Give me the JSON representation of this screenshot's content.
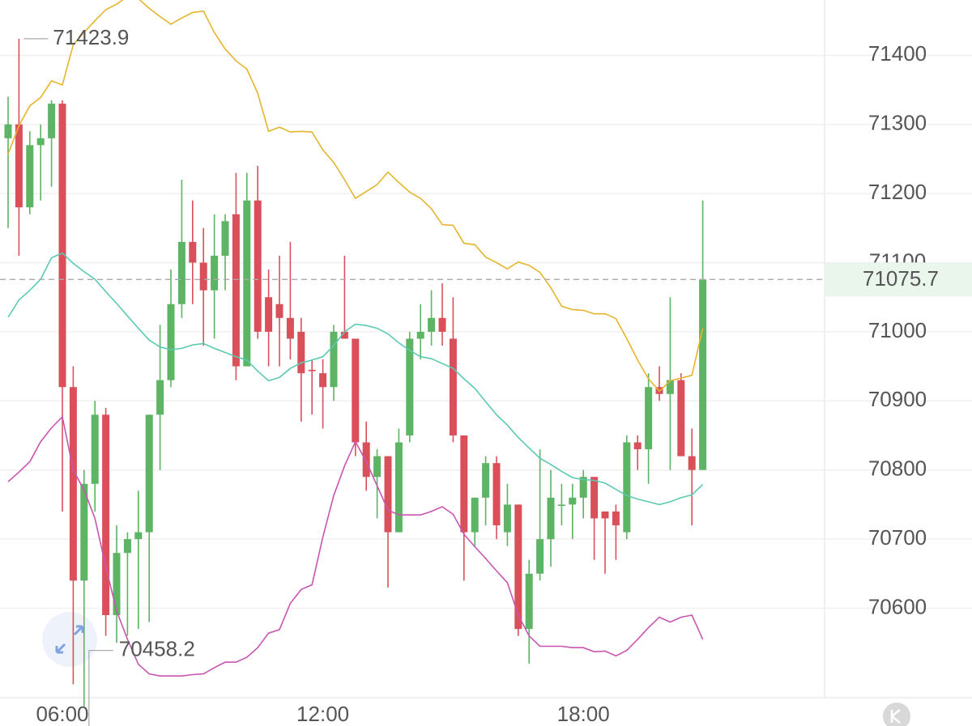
{
  "chart_data": {
    "type": "candlestick",
    "categories": [
      null,
      null,
      null,
      null,
      null,
      "06:00",
      null,
      null,
      null,
      null,
      null,
      null,
      null,
      null,
      null,
      null,
      null,
      null,
      null,
      null,
      null,
      null,
      null,
      null,
      null,
      null,
      null,
      null,
      null,
      "12:00",
      null,
      null,
      null,
      null,
      null,
      null,
      null,
      null,
      null,
      null,
      null,
      null,
      null,
      null,
      null,
      null,
      null,
      null,
      null,
      null,
      null,
      null,
      null,
      "18:00",
      null,
      null,
      null,
      null,
      null,
      null,
      null,
      null,
      null,
      null,
      null
    ],
    "open": [
      71280,
      71300,
      71180,
      71270,
      71280,
      71330,
      70920,
      70640,
      70780,
      70880,
      70590,
      70680,
      70700,
      70710,
      70880,
      70930,
      71040,
      71130,
      71100,
      71060,
      71110,
      71170,
      70950,
      71190,
      71050,
      71040,
      71020,
      71000,
      70945,
      70940,
      70920,
      71000,
      70990,
      70840,
      70790,
      70820,
      70710,
      70850,
      70990,
      71000,
      71020,
      70990,
      70850,
      70710,
      70760,
      70810,
      70710,
      70750,
      70570,
      70650,
      70700,
      70750,
      70750,
      70760,
      70790,
      70740,
      70740,
      70710,
      70840,
      70830,
      70920,
      70910,
      70930,
      70820,
      70800
    ],
    "high": [
      71340,
      71423.9,
      71290,
      71300,
      71335,
      71335,
      70950,
      70800,
      70900,
      70890,
      70720,
      70710,
      70770,
      70880,
      71010,
      71090,
      71220,
      71190,
      71150,
      71170,
      71170,
      71230,
      71230,
      71240,
      71090,
      71110,
      71130,
      71020,
      70960,
      70960,
      71010,
      71110,
      70990,
      70870,
      70830,
      70820,
      70860,
      71000,
      71040,
      71060,
      71070,
      71050,
      70850,
      70760,
      70820,
      70820,
      70780,
      70750,
      70670,
      70830,
      70800,
      70780,
      70780,
      70800,
      70790,
      70740,
      70750,
      70850,
      70850,
      70940,
      70950,
      71050,
      70940,
      70860,
      71190
    ],
    "low": [
      71150,
      71110,
      71170,
      71190,
      71210,
      70740,
      70490,
      70458.2,
      70740,
      70560,
      70550,
      70560,
      70570,
      70580,
      70800,
      70920,
      71020,
      71040,
      70980,
      70990,
      71060,
      70930,
      70950,
      70990,
      70950,
      70950,
      70960,
      70870,
      70880,
      70860,
      70900,
      70990,
      70820,
      70770,
      70730,
      70630,
      70710,
      70840,
      70960,
      70980,
      70980,
      70840,
      70640,
      70690,
      70720,
      70700,
      70690,
      70560,
      70520,
      70640,
      70660,
      70720,
      70700,
      70730,
      70670,
      70650,
      70670,
      70700,
      70800,
      70780,
      70900,
      70800,
      70820,
      70720,
      70800
    ],
    "close": [
      71300,
      71180,
      71270,
      71280,
      71330,
      70920,
      70640,
      70780,
      70880,
      70590,
      70680,
      70700,
      70710,
      70880,
      70930,
      71040,
      71130,
      71100,
      71060,
      71110,
      71160,
      70950,
      71190,
      71000,
      71000,
      71020,
      70990,
      70940,
      70943,
      70920,
      71000,
      70990,
      70840,
      70790,
      70820,
      70710,
      70840,
      70990,
      71000,
      71020,
      71000,
      70850,
      70710,
      70760,
      70810,
      70720,
      70750,
      70570,
      70650,
      70700,
      70760,
      70750,
      70760,
      70790,
      70730,
      70730,
      70720,
      70840,
      70830,
      70920,
      70910,
      70930,
      70820,
      70800,
      71075.7
    ],
    "up_color": "#5cb464",
    "down_color": "#d9505a",
    "bands": [
      {
        "color": "#e6b52e",
        "values": [
          71257,
          71298,
          71327,
          71339,
          71363,
          71357,
          71415,
          71433,
          71450,
          71466,
          71474,
          71485,
          71482,
          71468,
          71456,
          71445,
          71454,
          71462,
          71464,
          71433,
          71409,
          71392,
          71380,
          71345,
          71290,
          71296,
          71289,
          71290,
          71289,
          71263,
          71245,
          71220,
          71193,
          71203,
          71213,
          71231,
          71216,
          71202,
          71193,
          71178,
          71155,
          71154,
          71128,
          71126,
          71108,
          71100,
          71091,
          71101,
          71096,
          71086,
          71064,
          71037,
          71032,
          71031,
          71026,
          71026,
          71019,
          70990,
          70959,
          70932,
          70914,
          70929,
          70933,
          70937,
          71005
        ]
      },
      {
        "color": "#5cc9b2",
        "values": [
          71021,
          71046,
          71060,
          71076,
          71107,
          71114,
          71099,
          71087,
          71076,
          71058,
          71041,
          71023,
          71005,
          70988,
          70978,
          70974,
          70976,
          70981,
          70983,
          70976,
          70970,
          70964,
          70959,
          70943,
          70929,
          70934,
          70947,
          70955,
          70959,
          70964,
          70980,
          71000,
          71011,
          71009,
          71005,
          70997,
          70984,
          70973,
          70964,
          70961,
          70954,
          70947,
          70932,
          70918,
          70899,
          70880,
          70865,
          70847,
          70832,
          70817,
          70808,
          70798,
          70789,
          70786,
          70785,
          70781,
          70772,
          70763,
          70758,
          70754,
          70750,
          70754,
          70760,
          70764,
          70779
        ]
      },
      {
        "color": "#c855b0",
        "values": [
          70783,
          70797,
          70812,
          70841,
          70861,
          70877,
          70800,
          70771,
          70730,
          70660,
          70596,
          70555,
          70519,
          70505,
          70502,
          70502,
          70502,
          70504,
          70505,
          70514,
          70522,
          70522,
          70529,
          70543,
          70564,
          70569,
          70607,
          70627,
          70634,
          70703,
          70763,
          70806,
          70841,
          70812,
          70777,
          70742,
          70735,
          70735,
          70735,
          70740,
          70747,
          70736,
          70707,
          70689,
          70672,
          70654,
          70637,
          70590,
          70560,
          70545,
          70545,
          70545,
          70543,
          70543,
          70537,
          70538,
          70531,
          70539,
          70555,
          70572,
          70587,
          70580,
          70587,
          70590,
          70555
        ]
      }
    ],
    "ylim": [
      70450,
      71480
    ],
    "yticks": [
      70600,
      70700,
      70800,
      70900,
      71000,
      71100,
      71200,
      71300,
      71400
    ],
    "grid": true
  }
}
